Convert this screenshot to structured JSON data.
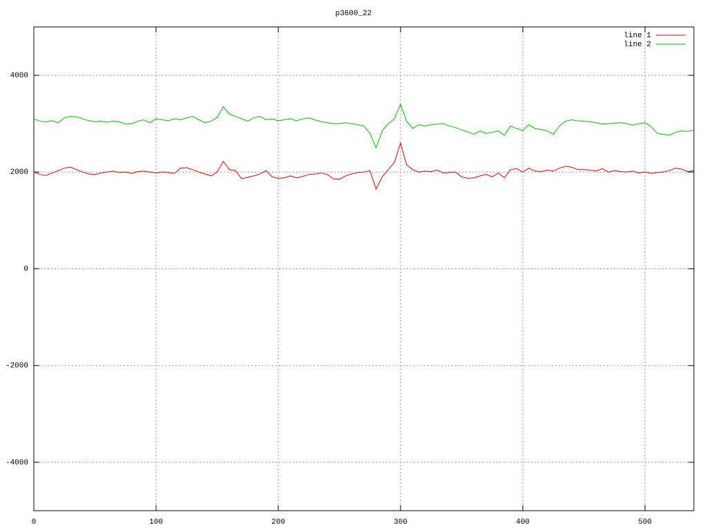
{
  "chart_data": {
    "type": "line",
    "title": "p3600_22",
    "x": [
      0,
      5,
      10,
      15,
      20,
      25,
      30,
      35,
      40,
      45,
      50,
      55,
      60,
      65,
      70,
      75,
      80,
      85,
      90,
      95,
      100,
      105,
      110,
      115,
      120,
      125,
      130,
      135,
      140,
      145,
      150,
      155,
      160,
      165,
      170,
      175,
      180,
      185,
      190,
      195,
      200,
      205,
      210,
      215,
      220,
      225,
      230,
      235,
      240,
      245,
      250,
      255,
      260,
      265,
      270,
      275,
      280,
      285,
      290,
      295,
      300,
      305,
      310,
      315,
      320,
      325,
      330,
      335,
      340,
      345,
      350,
      355,
      360,
      365,
      370,
      375,
      380,
      385,
      390,
      395,
      400,
      405,
      410,
      415,
      420,
      425,
      430,
      435,
      440,
      445,
      450,
      455,
      460,
      465,
      470,
      475,
      480,
      485,
      490,
      495,
      500,
      505,
      510,
      515,
      520,
      525,
      530,
      535,
      540
    ],
    "series": [
      {
        "name": "line 1",
        "color": "#dd0000",
        "values": [
          2000,
          1950,
          1930,
          1980,
          2030,
          2080,
          2100,
          2050,
          2000,
          1960,
          1950,
          1980,
          2000,
          2020,
          1990,
          2000,
          1970,
          2010,
          2020,
          2000,
          1980,
          2000,
          1990,
          1970,
          2080,
          2090,
          2050,
          2000,
          1960,
          1920,
          2000,
          2220,
          2050,
          2030,
          1860,
          1890,
          1920,
          1960,
          2030,
          1900,
          1870,
          1880,
          1920,
          1880,
          1910,
          1950,
          1960,
          1980,
          1950,
          1860,
          1850,
          1920,
          1960,
          1990,
          2000,
          2030,
          1650,
          1900,
          2050,
          2200,
          2600,
          2150,
          2050,
          2000,
          2020,
          2010,
          2040,
          1980,
          1990,
          2000,
          1900,
          1870,
          1880,
          1920,
          1950,
          1900,
          1980,
          1880,
          2050,
          2070,
          2000,
          2080,
          2020,
          2010,
          2040,
          2020,
          2080,
          2120,
          2100,
          2050,
          2050,
          2040,
          2020,
          2070,
          2000,
          2030,
          2010,
          2000,
          2020,
          1980,
          2000,
          1970,
          1990,
          2000,
          2030,
          2080,
          2060,
          2010,
          2030
        ]
      },
      {
        "name": "line 2",
        "color": "#00bb00",
        "values": [
          3100,
          3050,
          3040,
          3060,
          3020,
          3120,
          3150,
          3140,
          3100,
          3060,
          3040,
          3050,
          3030,
          3050,
          3040,
          2990,
          3000,
          3050,
          3080,
          3020,
          3100,
          3080,
          3060,
          3100,
          3080,
          3120,
          3150,
          3080,
          3020,
          3050,
          3130,
          3350,
          3200,
          3150,
          3100,
          3050,
          3120,
          3150,
          3080,
          3100,
          3060,
          3080,
          3100,
          3060,
          3100,
          3120,
          3080,
          3040,
          3020,
          3000,
          3000,
          3020,
          3000,
          2980,
          2950,
          2800,
          2500,
          2850,
          3000,
          3100,
          3400,
          3050,
          2900,
          2980,
          2950,
          2980,
          2990,
          3000,
          2950,
          2920,
          2870,
          2830,
          2780,
          2850,
          2800,
          2820,
          2850,
          2760,
          2950,
          2900,
          2860,
          2980,
          2900,
          2880,
          2850,
          2780,
          2950,
          3050,
          3080,
          3060,
          3050,
          3040,
          3020,
          2990,
          3000,
          3010,
          3020,
          3000,
          2970,
          3000,
          3020,
          2940,
          2800,
          2780,
          2760,
          2820,
          2850,
          2840,
          2870
        ]
      }
    ],
    "xlim": [
      0,
      540
    ],
    "xticks": [
      0,
      100,
      200,
      300,
      400,
      500
    ],
    "ylim": [
      -5000,
      5000
    ],
    "yticks": [
      -4000,
      -2000,
      0,
      2000,
      4000
    ],
    "grid": true,
    "legend": "top-right"
  }
}
